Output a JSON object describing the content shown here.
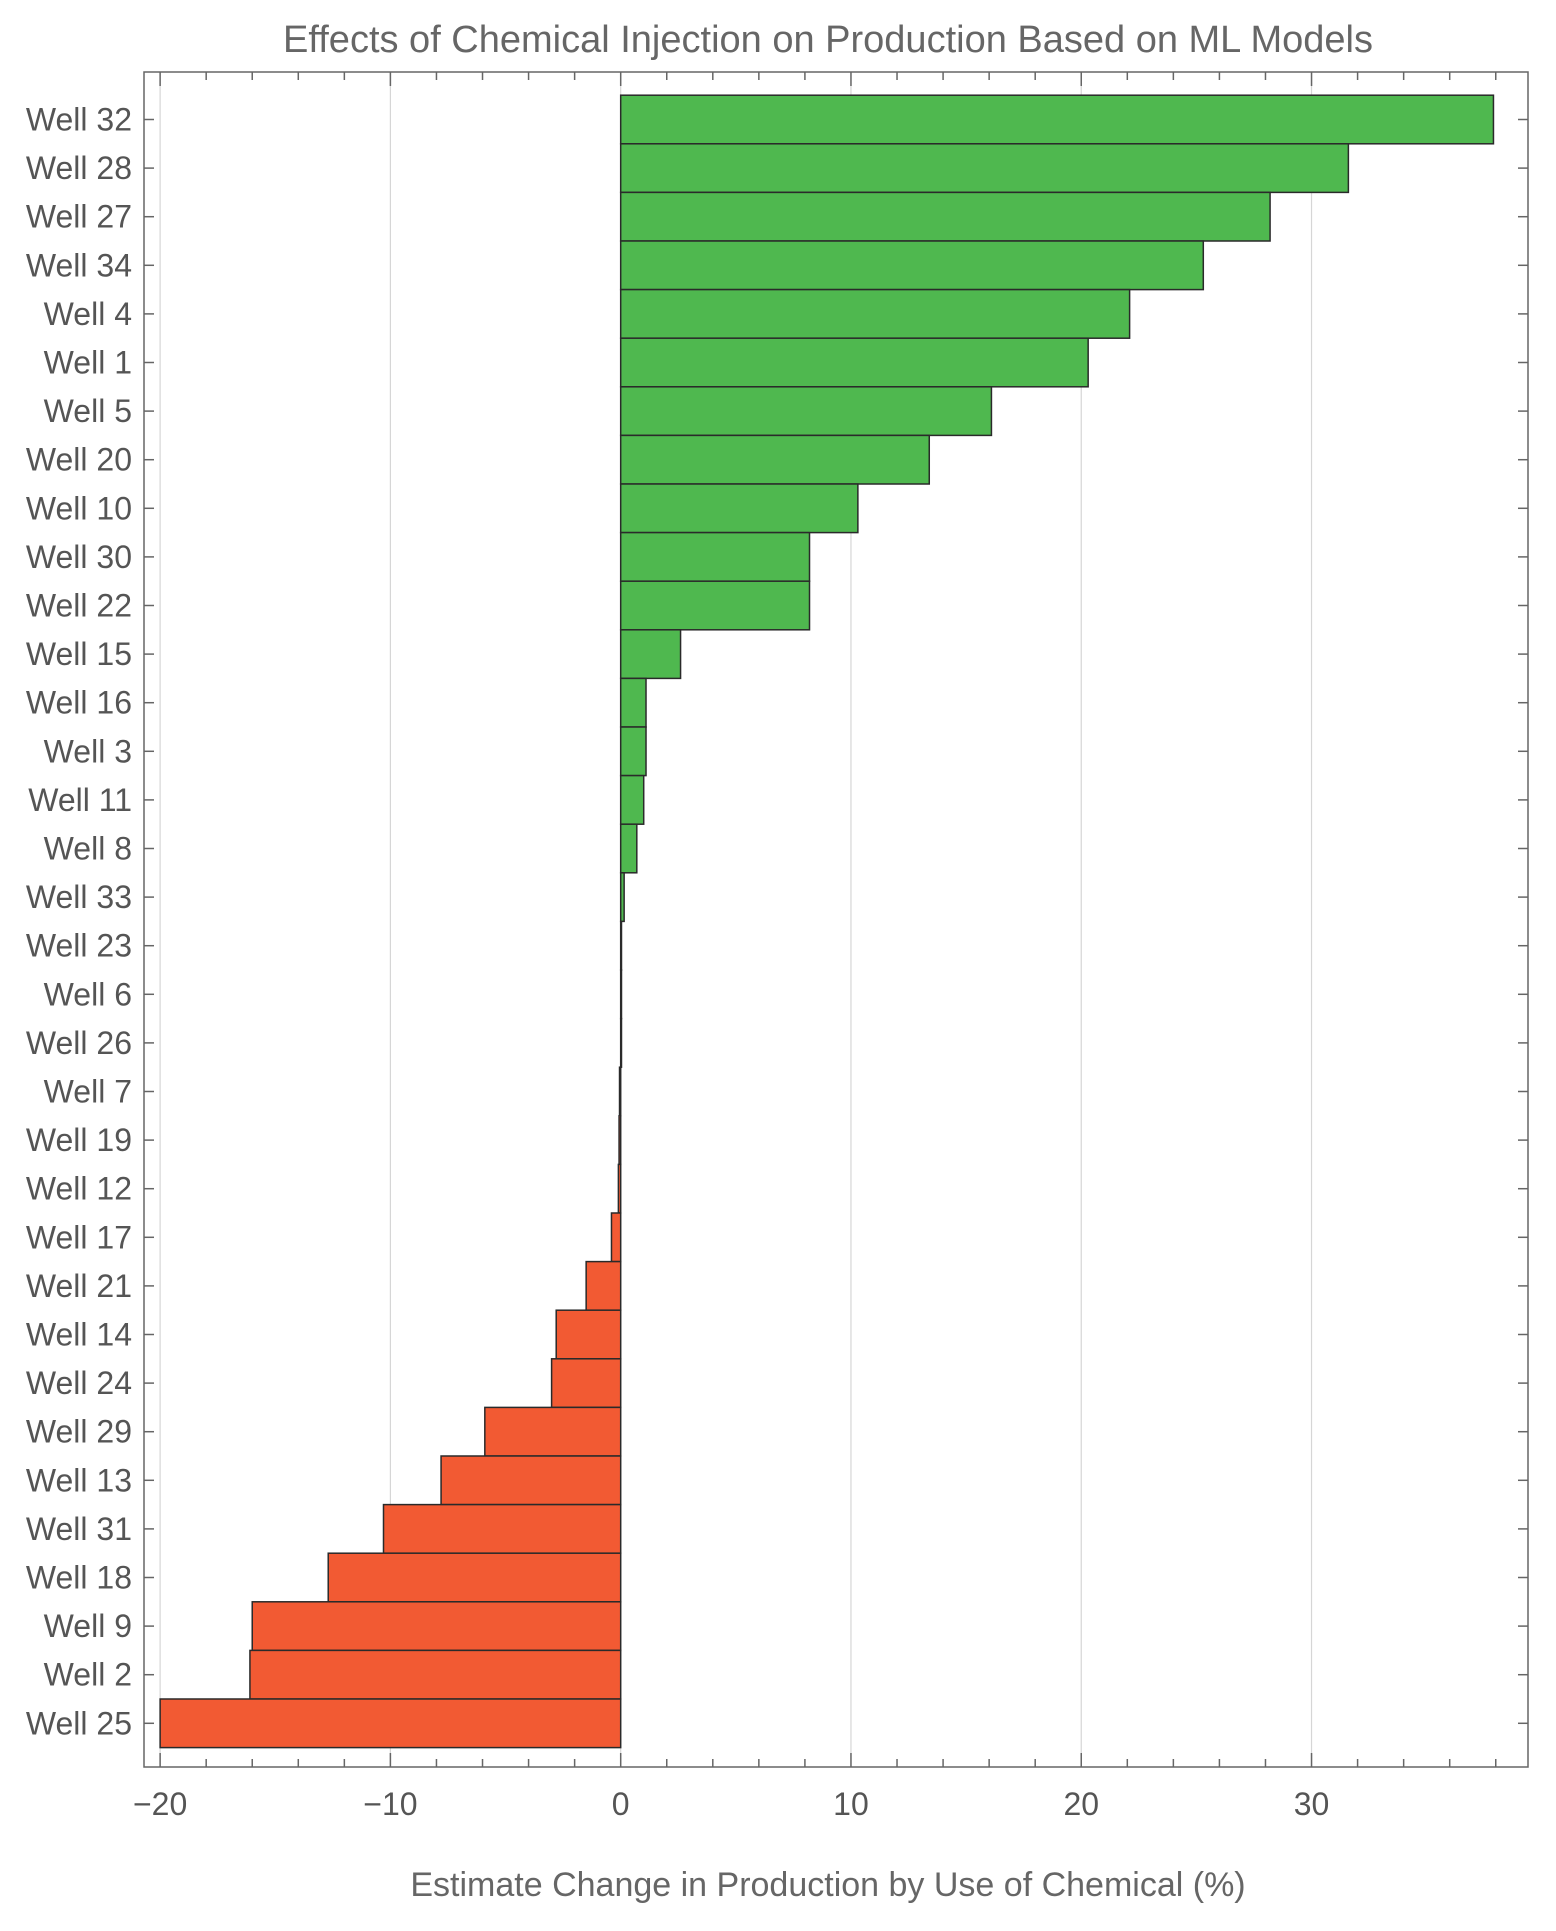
{
  "chart_data": {
    "type": "bar",
    "orientation": "horizontal",
    "title": "Effects of Chemical Injection on Production Based on ML Models",
    "xlabel": "Estimate Change in Production by Use of Chemical (%)",
    "ylabel": "",
    "xlim": [
      -20.7,
      39.4
    ],
    "xticks": [
      -20,
      -10,
      0,
      10,
      20,
      30
    ],
    "xtick_labels": [
      "−20",
      "−10",
      "0",
      "10",
      "20",
      "30"
    ],
    "grid": "vertical at major ticks",
    "colors": {
      "positive": "#4fb84f",
      "negative": "#f25a33",
      "edge": "#2a2a2a",
      "grid": "#d6d6d6",
      "frame": "#666666"
    },
    "categories": [
      "Well 32",
      "Well 28",
      "Well 27",
      "Well 34",
      "Well 4",
      "Well 1",
      "Well 5",
      "Well 20",
      "Well 10",
      "Well 30",
      "Well 22",
      "Well 15",
      "Well 16",
      "Well 3",
      "Well 11",
      "Well 8",
      "Well 33",
      "Well 23",
      "Well 6",
      "Well 26",
      "Well 7",
      "Well 19",
      "Well 12",
      "Well 17",
      "Well 21",
      "Well 14",
      "Well 24",
      "Well 29",
      "Well 13",
      "Well 31",
      "Well 18",
      "Well 9",
      "Well 2",
      "Well 25"
    ],
    "values": [
      37.9,
      31.6,
      28.2,
      25.3,
      22.1,
      20.3,
      16.1,
      13.4,
      10.3,
      8.2,
      8.2,
      2.6,
      1.1,
      1.1,
      1.0,
      0.7,
      0.15,
      0.0,
      0.0,
      0.0,
      -0.05,
      -0.07,
      -0.1,
      -0.4,
      -1.5,
      -2.8,
      -3.0,
      -5.9,
      -7.8,
      -10.3,
      -12.7,
      -16.0,
      -16.1,
      -20.0
    ]
  }
}
